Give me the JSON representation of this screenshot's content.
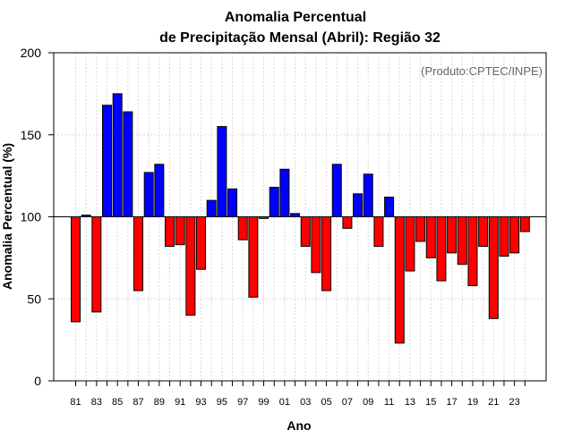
{
  "chart_data": {
    "type": "bar",
    "title": "Anomalia Percentual",
    "subtitle": "de Precipitação Mensal (Abril): Região 32",
    "xlabel": "Ano",
    "ylabel": "Anomalia Percentual (%)",
    "credit": "(Produto:CPTEC/INPE)",
    "ylim": [
      0,
      200
    ],
    "yticks": [
      "0",
      "50",
      "100",
      "150",
      "200"
    ],
    "baseline": 100,
    "grid": true,
    "colors": {
      "above": "#0000ff",
      "below": "#ff0000"
    },
    "categories": [
      "81",
      "82",
      "83",
      "84",
      "85",
      "86",
      "87",
      "88",
      "89",
      "90",
      "91",
      "92",
      "93",
      "94",
      "95",
      "96",
      "97",
      "98",
      "99",
      "00",
      "01",
      "02",
      "03",
      "04",
      "05",
      "06",
      "07",
      "08",
      "09",
      "10",
      "11",
      "12",
      "13",
      "14",
      "15",
      "16",
      "17",
      "18",
      "19",
      "20",
      "21",
      "22",
      "23",
      "24"
    ],
    "xtick_labels": [
      "81",
      "83",
      "85",
      "87",
      "89",
      "91",
      "93",
      "95",
      "97",
      "99",
      "01",
      "03",
      "05",
      "07",
      "09",
      "11",
      "13",
      "15",
      "17",
      "19",
      "21",
      "23"
    ],
    "values": [
      36,
      101,
      42,
      168,
      175,
      164,
      55,
      127,
      132,
      82,
      83,
      40,
      68,
      110,
      155,
      117,
      86,
      51,
      99,
      118,
      129,
      102,
      82,
      66,
      55,
      132,
      93,
      114,
      126,
      82,
      112,
      23,
      67,
      85,
      75,
      61,
      78,
      71,
      58,
      82,
      38,
      76,
      78,
      91
    ]
  }
}
